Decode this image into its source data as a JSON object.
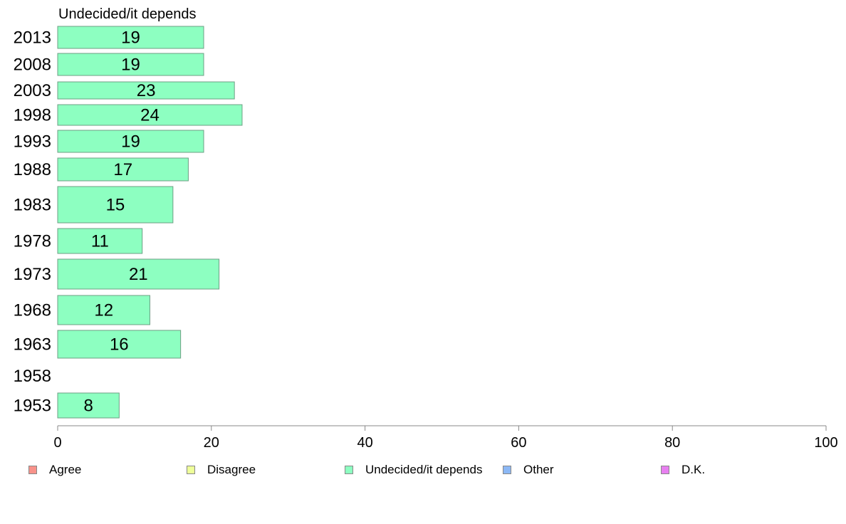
{
  "chart_data": {
    "type": "bar",
    "orientation": "horizontal",
    "title": "Undecided/it depends",
    "categories": [
      "2013",
      "2008",
      "2003",
      "1998",
      "1993",
      "1988",
      "1983",
      "1978",
      "1973",
      "1968",
      "1963",
      "1958",
      "1953"
    ],
    "series": [
      {
        "name": "Undecided/it depends",
        "color": "#8dffc1",
        "values": [
          19,
          19,
          23,
          24,
          19,
          17,
          15,
          11,
          21,
          12,
          16,
          null,
          8
        ]
      }
    ],
    "xlim": [
      0,
      100
    ],
    "xticks": [
      0,
      20,
      40,
      60,
      80,
      100
    ],
    "grid": false,
    "legend_position": "bottom"
  },
  "legend": [
    {
      "label": "Agree",
      "color": "#f8928a"
    },
    {
      "label": "Disagree",
      "color": "#eeff99"
    },
    {
      "label": "Undecided/it depends",
      "color": "#8dffc1"
    },
    {
      "label": "Other",
      "color": "#8cb8f5"
    },
    {
      "label": "D.K.",
      "color": "#e77ff0"
    }
  ]
}
